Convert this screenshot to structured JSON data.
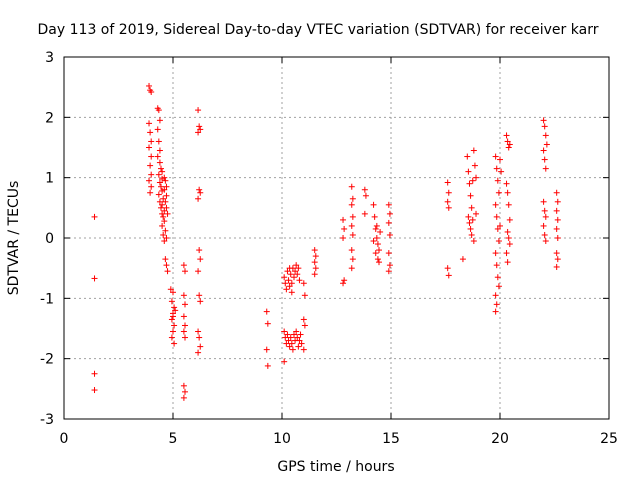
{
  "chart_data": {
    "type": "scatter",
    "title": "Day 113 of 2019, Sidereal Day-to-day VTEC variation (SDTVAR) for receiver karr",
    "xlabel": "GPS time / hours",
    "ylabel": "SDTVAR / TECUs",
    "xlim": [
      0,
      25
    ],
    "ylim": [
      -3,
      3
    ],
    "xticks": [
      0,
      5,
      10,
      15,
      20,
      25
    ],
    "yticks": [
      -3,
      -2,
      -1,
      0,
      1,
      2,
      3
    ],
    "grid": true,
    "marker": "+",
    "marker_color": "#ff0000",
    "series": [
      {
        "name": "SDTVAR",
        "points": [
          [
            1.4,
            0.35
          ],
          [
            1.4,
            -0.67
          ],
          [
            1.4,
            -2.25
          ],
          [
            1.4,
            -2.52
          ],
          [
            3.9,
            2.52
          ],
          [
            3.95,
            2.45
          ],
          [
            4.0,
            2.42
          ],
          [
            3.9,
            1.9
          ],
          [
            3.95,
            1.75
          ],
          [
            4.0,
            1.6
          ],
          [
            3.9,
            1.5
          ],
          [
            4.0,
            1.35
          ],
          [
            3.95,
            1.2
          ],
          [
            4.0,
            1.05
          ],
          [
            3.9,
            0.95
          ],
          [
            4.0,
            0.85
          ],
          [
            3.95,
            0.75
          ],
          [
            4.3,
            2.15
          ],
          [
            4.35,
            2.12
          ],
          [
            4.4,
            1.95
          ],
          [
            4.3,
            1.8
          ],
          [
            4.35,
            1.6
          ],
          [
            4.4,
            1.45
          ],
          [
            4.3,
            1.35
          ],
          [
            4.4,
            1.25
          ],
          [
            4.45,
            1.15
          ],
          [
            4.35,
            1.05
          ],
          [
            4.5,
            0.98
          ],
          [
            4.4,
            0.92
          ],
          [
            4.45,
            0.85
          ],
          [
            4.5,
            0.78
          ],
          [
            4.35,
            0.72
          ],
          [
            4.55,
            0.65
          ],
          [
            4.4,
            0.6
          ],
          [
            4.5,
            0.55
          ],
          [
            4.45,
            0.5
          ],
          [
            4.6,
            0.45
          ],
          [
            4.5,
            0.4
          ],
          [
            4.55,
            0.35
          ],
          [
            4.6,
            0.28
          ],
          [
            4.5,
            0.2
          ],
          [
            4.65,
            0.12
          ],
          [
            4.55,
            0.05
          ],
          [
            4.7,
            0.0
          ],
          [
            4.6,
            -0.05
          ],
          [
            4.5,
            1.1
          ],
          [
            4.6,
            1.0
          ],
          [
            4.65,
            0.95
          ],
          [
            4.7,
            0.85
          ],
          [
            4.6,
            0.8
          ],
          [
            4.7,
            0.7
          ],
          [
            4.65,
            0.6
          ],
          [
            4.7,
            0.5
          ],
          [
            4.75,
            0.4
          ],
          [
            4.65,
            -0.35
          ],
          [
            4.7,
            -0.45
          ],
          [
            4.75,
            -0.55
          ],
          [
            4.9,
            -0.85
          ],
          [
            5.0,
            -0.9
          ],
          [
            4.95,
            -1.05
          ],
          [
            5.05,
            -1.15
          ],
          [
            5.0,
            -1.25
          ],
          [
            4.95,
            -1.35
          ],
          [
            5.05,
            -1.45
          ],
          [
            5.0,
            -1.55
          ],
          [
            4.95,
            -1.65
          ],
          [
            5.05,
            -1.75
          ],
          [
            5.0,
            -1.3
          ],
          [
            5.1,
            -1.2
          ],
          [
            5.5,
            -0.45
          ],
          [
            5.55,
            -0.55
          ],
          [
            5.5,
            -0.95
          ],
          [
            5.55,
            -1.1
          ],
          [
            5.5,
            -1.3
          ],
          [
            5.55,
            -1.45
          ],
          [
            5.5,
            -1.55
          ],
          [
            5.55,
            -1.65
          ],
          [
            5.5,
            -2.45
          ],
          [
            5.55,
            -2.55
          ],
          [
            5.5,
            -2.65
          ],
          [
            6.15,
            2.12
          ],
          [
            6.2,
            1.85
          ],
          [
            6.25,
            1.8
          ],
          [
            6.15,
            1.75
          ],
          [
            6.2,
            0.8
          ],
          [
            6.25,
            0.75
          ],
          [
            6.15,
            0.65
          ],
          [
            6.2,
            -0.2
          ],
          [
            6.25,
            -0.35
          ],
          [
            6.15,
            -0.55
          ],
          [
            6.2,
            -0.95
          ],
          [
            6.25,
            -1.05
          ],
          [
            6.15,
            -1.55
          ],
          [
            6.2,
            -1.65
          ],
          [
            6.25,
            -1.8
          ],
          [
            6.15,
            -1.9
          ],
          [
            9.3,
            -1.22
          ],
          [
            9.35,
            -1.42
          ],
          [
            9.3,
            -1.85
          ],
          [
            9.35,
            -2.12
          ],
          [
            10.1,
            -0.65
          ],
          [
            10.15,
            -0.75
          ],
          [
            10.2,
            -0.85
          ],
          [
            10.25,
            -0.55
          ],
          [
            10.3,
            -0.7
          ],
          [
            10.35,
            -0.8
          ],
          [
            10.4,
            -0.6
          ],
          [
            10.45,
            -0.75
          ],
          [
            10.5,
            -0.5
          ],
          [
            10.55,
            -0.65
          ],
          [
            10.6,
            -0.55
          ],
          [
            10.65,
            -0.45
          ],
          [
            10.7,
            -0.6
          ],
          [
            10.75,
            -0.5
          ],
          [
            10.8,
            -0.7
          ],
          [
            10.35,
            -0.5
          ],
          [
            10.45,
            -0.9
          ],
          [
            10.1,
            -1.55
          ],
          [
            10.15,
            -1.65
          ],
          [
            10.2,
            -1.75
          ],
          [
            10.25,
            -1.6
          ],
          [
            10.3,
            -1.7
          ],
          [
            10.35,
            -1.8
          ],
          [
            10.4,
            -1.65
          ],
          [
            10.45,
            -1.75
          ],
          [
            10.5,
            -1.85
          ],
          [
            10.55,
            -1.6
          ],
          [
            10.6,
            -1.7
          ],
          [
            10.65,
            -1.55
          ],
          [
            10.7,
            -1.65
          ],
          [
            10.75,
            -1.8
          ],
          [
            10.8,
            -1.7
          ],
          [
            10.85,
            -1.6
          ],
          [
            10.9,
            -1.75
          ],
          [
            10.1,
            -2.05
          ],
          [
            11.0,
            -0.75
          ],
          [
            11.05,
            -0.95
          ],
          [
            11.0,
            -1.35
          ],
          [
            11.05,
            -1.45
          ],
          [
            11.0,
            -1.85
          ],
          [
            11.5,
            -0.2
          ],
          [
            11.55,
            -0.3
          ],
          [
            11.5,
            -0.4
          ],
          [
            11.55,
            -0.5
          ],
          [
            11.5,
            -0.6
          ],
          [
            12.8,
            0.3
          ],
          [
            12.85,
            0.15
          ],
          [
            12.8,
            0.0
          ],
          [
            12.85,
            -0.7
          ],
          [
            12.8,
            -0.75
          ],
          [
            13.2,
            0.85
          ],
          [
            13.25,
            0.65
          ],
          [
            13.2,
            0.55
          ],
          [
            13.25,
            0.35
          ],
          [
            13.2,
            0.2
          ],
          [
            13.25,
            0.05
          ],
          [
            13.2,
            -0.2
          ],
          [
            13.25,
            -0.35
          ],
          [
            13.2,
            -0.5
          ],
          [
            13.8,
            0.8
          ],
          [
            13.85,
            0.7
          ],
          [
            13.8,
            0.4
          ],
          [
            14.2,
            0.55
          ],
          [
            14.25,
            0.35
          ],
          [
            14.3,
            0.15
          ],
          [
            14.35,
            0.0
          ],
          [
            14.4,
            -0.1
          ],
          [
            14.45,
            -0.2
          ],
          [
            14.2,
            -0.05
          ],
          [
            14.3,
            -0.25
          ],
          [
            14.4,
            -0.35
          ],
          [
            14.5,
            0.1
          ],
          [
            14.35,
            0.2
          ],
          [
            14.45,
            -0.4
          ],
          [
            14.9,
            0.55
          ],
          [
            14.95,
            0.4
          ],
          [
            14.9,
            0.25
          ],
          [
            14.95,
            0.05
          ],
          [
            14.9,
            -0.25
          ],
          [
            14.95,
            -0.45
          ],
          [
            14.9,
            -0.55
          ],
          [
            17.6,
            0.92
          ],
          [
            17.65,
            0.75
          ],
          [
            17.6,
            0.6
          ],
          [
            17.65,
            0.5
          ],
          [
            17.6,
            -0.5
          ],
          [
            17.65,
            -0.62
          ],
          [
            18.3,
            -0.35
          ],
          [
            18.5,
            1.35
          ],
          [
            18.55,
            1.1
          ],
          [
            18.6,
            0.9
          ],
          [
            18.65,
            0.7
          ],
          [
            18.7,
            0.5
          ],
          [
            18.75,
            0.3
          ],
          [
            18.8,
            1.45
          ],
          [
            18.85,
            1.2
          ],
          [
            18.9,
            1.0
          ],
          [
            18.55,
            0.35
          ],
          [
            18.65,
            0.15
          ],
          [
            18.7,
            0.05
          ],
          [
            18.8,
            -0.05
          ],
          [
            18.6,
            0.25
          ],
          [
            18.9,
            0.4
          ],
          [
            18.75,
            0.95
          ],
          [
            19.8,
            1.35
          ],
          [
            19.85,
            1.15
          ],
          [
            19.9,
            0.95
          ],
          [
            19.95,
            0.75
          ],
          [
            19.8,
            0.55
          ],
          [
            19.85,
            0.35
          ],
          [
            19.9,
            0.15
          ],
          [
            19.95,
            -0.05
          ],
          [
            19.8,
            -0.25
          ],
          [
            19.85,
            -0.45
          ],
          [
            19.9,
            -0.65
          ],
          [
            19.95,
            -0.8
          ],
          [
            19.8,
            -0.95
          ],
          [
            19.85,
            -1.1
          ],
          [
            19.8,
            -1.22
          ],
          [
            20.0,
            1.3
          ],
          [
            20.05,
            1.1
          ],
          [
            20.0,
            0.2
          ],
          [
            20.3,
            1.7
          ],
          [
            20.35,
            1.6
          ],
          [
            20.4,
            1.5
          ],
          [
            20.45,
            1.55
          ],
          [
            20.3,
            0.9
          ],
          [
            20.35,
            0.75
          ],
          [
            20.4,
            0.55
          ],
          [
            20.45,
            0.3
          ],
          [
            20.35,
            0.1
          ],
          [
            20.4,
            0.0
          ],
          [
            20.45,
            -0.1
          ],
          [
            20.3,
            -0.25
          ],
          [
            20.35,
            -0.4
          ],
          [
            22.0,
            1.95
          ],
          [
            22.05,
            1.85
          ],
          [
            22.1,
            1.7
          ],
          [
            22.15,
            1.55
          ],
          [
            22.0,
            1.45
          ],
          [
            22.05,
            1.3
          ],
          [
            22.1,
            1.15
          ],
          [
            22.0,
            0.6
          ],
          [
            22.05,
            0.45
          ],
          [
            22.1,
            0.35
          ],
          [
            22.0,
            0.2
          ],
          [
            22.05,
            0.05
          ],
          [
            22.1,
            -0.05
          ],
          [
            22.6,
            0.75
          ],
          [
            22.65,
            0.6
          ],
          [
            22.6,
            0.45
          ],
          [
            22.65,
            0.3
          ],
          [
            22.6,
            0.15
          ],
          [
            22.65,
            0.0
          ],
          [
            22.6,
            -0.25
          ],
          [
            22.65,
            -0.35
          ],
          [
            22.6,
            -0.48
          ]
        ]
      }
    ]
  }
}
